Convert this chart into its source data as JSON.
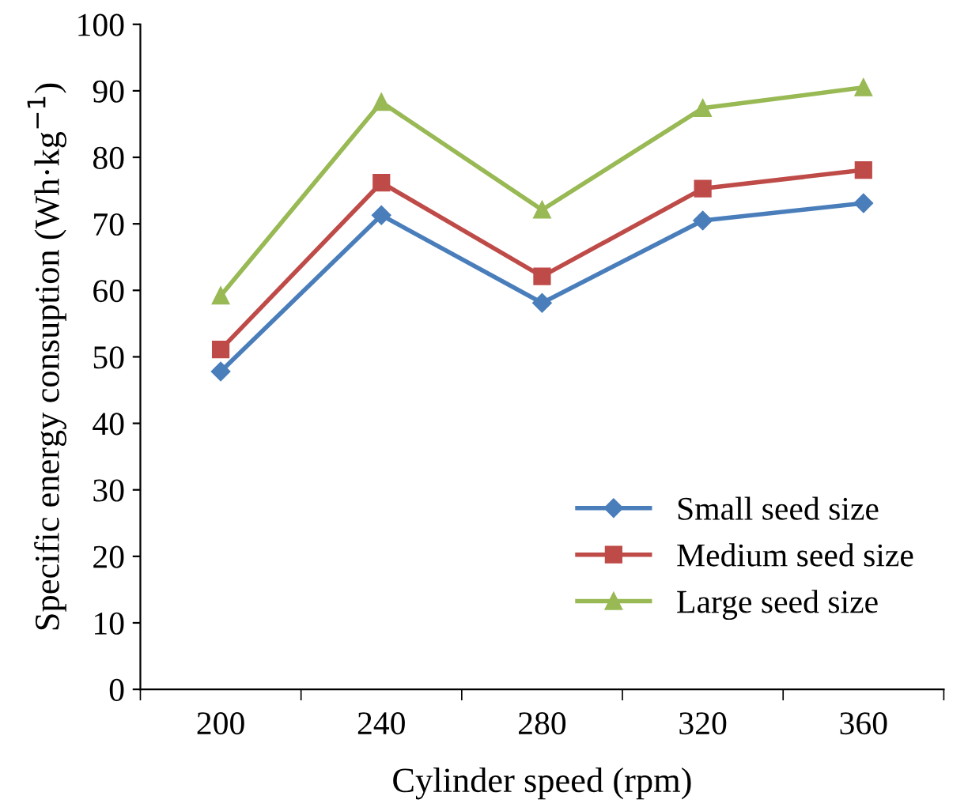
{
  "chart_data": {
    "type": "line",
    "xlabel": "Cylinder speed (rpm)",
    "ylabel": "Specific energy consuption (Wh·kg$^{−1}$)",
    "categories": [
      "200",
      "240",
      "280",
      "320",
      "360"
    ],
    "series": [
      {
        "name": "Small seed size",
        "color": "#4a7ebb",
        "marker": "diamond",
        "values": [
          47.8,
          71.3,
          58.1,
          70.5,
          73.1
        ]
      },
      {
        "name": "Medium seed size",
        "color": "#be4b48",
        "marker": "square",
        "values": [
          51.1,
          76.2,
          62.1,
          75.3,
          78.1
        ]
      },
      {
        "name": "Large seed size",
        "color": "#98b954",
        "marker": "triangle",
        "values": [
          59.2,
          88.3,
          72.1,
          87.4,
          90.5
        ]
      }
    ],
    "ylim": [
      0,
      100
    ],
    "yticks": [
      0,
      10,
      20,
      30,
      40,
      50,
      60,
      70,
      80,
      90,
      100
    ],
    "grid": false,
    "legend": "bottom right"
  }
}
